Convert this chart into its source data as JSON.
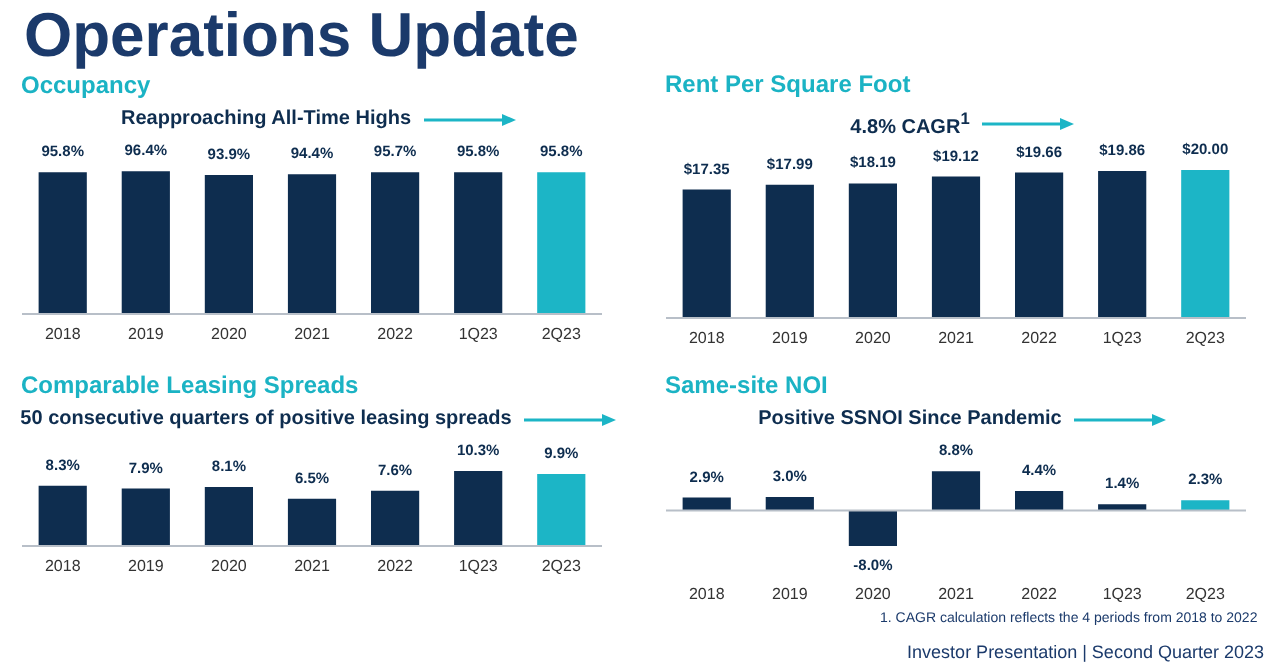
{
  "chart_data": [
    {
      "type": "bar",
      "title": "Occupancy",
      "categories": [
        "2018",
        "2019",
        "2020",
        "2021",
        "2022",
        "1Q23",
        "2Q23"
      ],
      "values": [
        95.8,
        96.4,
        93.9,
        94.4,
        95.7,
        95.8,
        95.8
      ],
      "value_labels": [
        "95.8%",
        "96.4%",
        "93.9%",
        "94.4%",
        "95.7%",
        "95.8%",
        "95.8%"
      ],
      "colors": [
        "#0e2d4f",
        "#0e2d4f",
        "#0e2d4f",
        "#0e2d4f",
        "#0e2d4f",
        "#0e2d4f",
        "#1cb5c6"
      ],
      "annotations": [
        "Reapproaching All-Time Highs",
        "Operations Update"
      ]
    },
    {
      "type": "bar",
      "title": "Rent Per Square Foot",
      "categories": [
        "2018",
        "2019",
        "2020",
        "2021",
        "2022",
        "1Q23",
        "2Q23"
      ],
      "values": [
        17.35,
        17.99,
        18.19,
        19.12,
        19.66,
        19.86,
        20.0
      ],
      "value_labels": [
        "$17.35",
        "$17.99",
        "$18.19",
        "$19.12",
        "$19.66",
        "$19.86",
        "$20.00"
      ],
      "colors": [
        "#0e2d4f",
        "#0e2d4f",
        "#0e2d4f",
        "#0e2d4f",
        "#0e2d4f",
        "#0e2d4f",
        "#1cb5c6"
      ],
      "annotations": [
        "4.8% CAGR$^{1}$",
        "1. CAGR calculation reflects the 4 periods from 2018 to 2022"
      ]
    },
    {
      "type": "bar",
      "title": "Comparable Leasing Spreads",
      "categories": [
        "2018",
        "2019",
        "2020",
        "2021",
        "2022",
        "1Q23",
        "2Q23"
      ],
      "values": [
        8.3,
        7.9,
        8.1,
        6.5,
        7.6,
        10.3,
        9.9
      ],
      "value_labels": [
        "8.3%",
        "7.9%",
        "8.1%",
        "6.5%",
        "7.6%",
        "10.3%",
        "9.9%"
      ],
      "colors": [
        "#0e2d4f",
        "#0e2d4f",
        "#0e2d4f",
        "#0e2d4f",
        "#0e2d4f",
        "#0e2d4f",
        "#1cb5c6"
      ],
      "annotations": [
        "50 consecutive quarters of positive leasing spreads"
      ]
    },
    {
      "type": "bar",
      "title": "Same-site NOI",
      "categories": [
        "2018",
        "2019",
        "2020",
        "2021",
        "2022",
        "1Q23",
        "2Q23"
      ],
      "values": [
        2.9,
        3.0,
        -8.0,
        8.8,
        4.4,
        1.4,
        2.3
      ],
      "value_labels": [
        "2.9%",
        "3.0%",
        "-8.0%",
        "8.8%",
        "4.4%",
        "1.4%",
        "2.3%"
      ],
      "colors": [
        "#0e2d4f",
        "#0e2d4f",
        "#0e2d4f",
        "#0e2d4f",
        "#0e2d4f",
        "#0e2d4f",
        "#1cb5c6"
      ],
      "annotations": [
        "Positive SSNOI Since Pandemic",
        "Investor Presentation | Second Quarter 2023"
      ]
    }
  ]
}
